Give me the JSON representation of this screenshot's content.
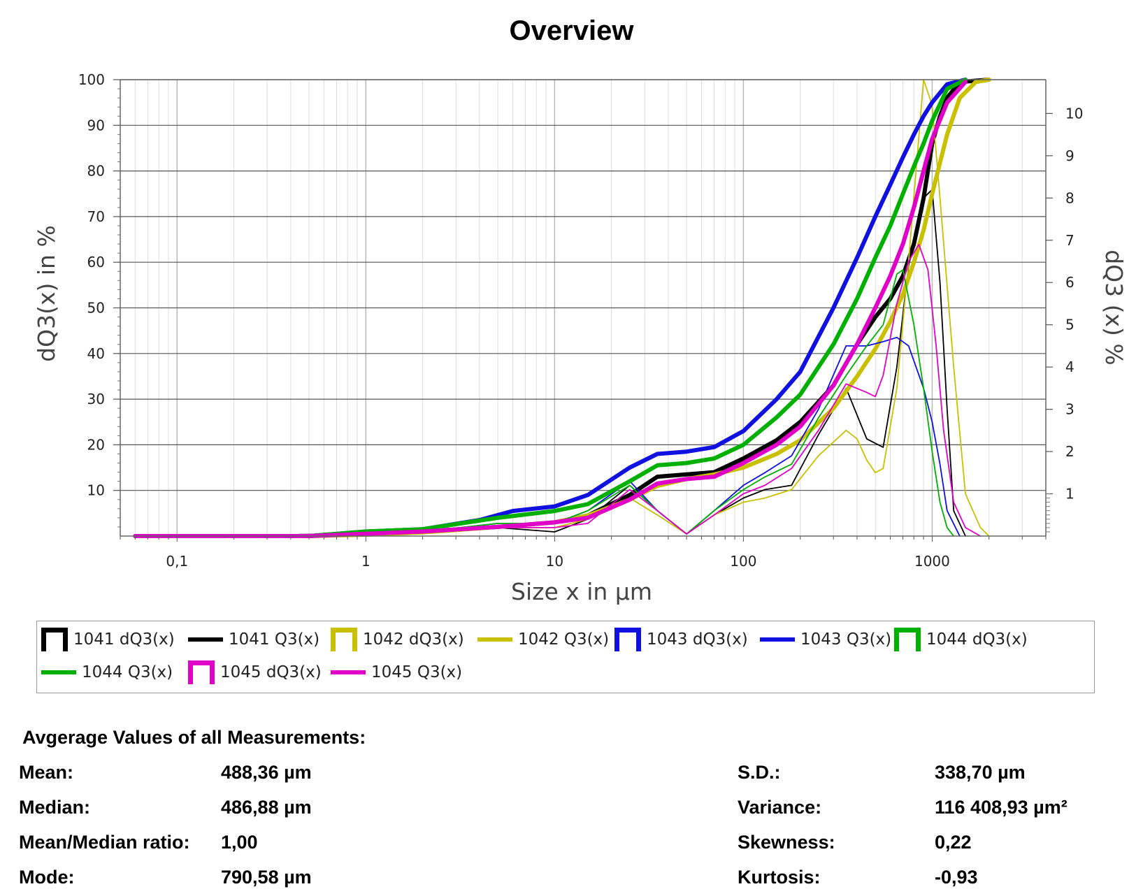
{
  "chart_data": {
    "type": "line",
    "title": "Overview",
    "xlabel": "Size x in µm",
    "ylabel": "dQ3(x) in %",
    "y2label": "dQ3 (x) %",
    "x_scale": "log",
    "xlim": [
      0.05,
      4000
    ],
    "ylim": [
      0,
      100
    ],
    "y2lim": [
      0,
      10.8
    ],
    "x_ticks": [
      {
        "value": 0.1,
        "label": "0,1"
      },
      {
        "value": 1,
        "label": "1"
      },
      {
        "value": 10,
        "label": "10"
      },
      {
        "value": 100,
        "label": "100"
      },
      {
        "value": 1000,
        "label": "1000"
      }
    ],
    "y_ticks": [
      10,
      20,
      30,
      40,
      50,
      60,
      70,
      80,
      90,
      100
    ],
    "y2_ticks": [
      1,
      2,
      3,
      4,
      5,
      6,
      7,
      8,
      9,
      10
    ],
    "grid": true,
    "legend_position": "bottom",
    "series": [
      {
        "name": "1041 dQ3(x)",
        "axis": "right",
        "color": "#000000",
        "style": "thin",
        "x": [
          0.06,
          1,
          2,
          5,
          10,
          15,
          25,
          35,
          50,
          70,
          100,
          130,
          180,
          250,
          350,
          450,
          550,
          650,
          750,
          900,
          1000,
          1100,
          1200,
          1300,
          1500
        ],
        "y": [
          0,
          0.05,
          0.1,
          0.2,
          0.1,
          0.4,
          1.2,
          0.6,
          0.05,
          0.5,
          0.9,
          1.1,
          1.2,
          2.4,
          3.5,
          2.3,
          2.1,
          4.0,
          6.4,
          8.0,
          8.2,
          6.0,
          3.0,
          0.6,
          0
        ]
      },
      {
        "name": "1041 Q3(x)",
        "axis": "left",
        "color": "#000000",
        "style": "thick",
        "x": [
          0.06,
          0.5,
          1,
          2,
          5,
          10,
          15,
          25,
          35,
          50,
          70,
          100,
          150,
          200,
          300,
          400,
          500,
          600,
          700,
          800,
          900,
          1000,
          1100,
          1200,
          1400,
          2000
        ],
        "y": [
          0,
          0,
          0.5,
          1,
          2,
          3,
          4.5,
          9,
          13,
          13.5,
          14,
          17,
          21,
          25,
          33,
          42,
          48,
          52,
          57,
          64,
          74,
          86,
          92,
          96,
          99.5,
          100
        ]
      },
      {
        "name": "1042 dQ3(x)",
        "axis": "right",
        "color": "#c8c000",
        "style": "thin",
        "x": [
          0.06,
          1,
          2,
          5,
          10,
          15,
          25,
          35,
          50,
          70,
          100,
          130,
          180,
          250,
          350,
          400,
          450,
          500,
          550,
          650,
          750,
          900,
          1000,
          1100,
          1300,
          1500,
          1800,
          2000
        ],
        "y": [
          0,
          0.05,
          0.1,
          0.2,
          0.2,
          0.4,
          0.9,
          0.5,
          0.05,
          0.5,
          0.8,
          0.9,
          1.1,
          1.9,
          2.5,
          2.3,
          1.8,
          1.5,
          1.6,
          3.5,
          6.5,
          10.8,
          10.2,
          8.0,
          4.0,
          1.0,
          0.2,
          0
        ]
      },
      {
        "name": "1042 Q3(x)",
        "axis": "left",
        "color": "#c8c000",
        "style": "thick",
        "x": [
          0.06,
          0.5,
          1,
          2,
          5,
          10,
          15,
          25,
          35,
          50,
          70,
          100,
          150,
          200,
          300,
          400,
          500,
          600,
          700,
          800,
          900,
          1000,
          1200,
          1400,
          1700,
          2000
        ],
        "y": [
          0,
          0,
          0.3,
          0.8,
          2,
          3,
          4.5,
          8,
          11,
          12.5,
          13.5,
          15,
          18,
          21,
          28,
          35,
          41,
          47,
          53,
          60,
          67,
          75,
          88,
          96,
          99.5,
          100
        ]
      },
      {
        "name": "1043 dQ3(x)",
        "axis": "right",
        "color": "#1010e0",
        "style": "thin",
        "x": [
          0.06,
          1,
          2,
          5,
          10,
          15,
          25,
          35,
          50,
          70,
          100,
          130,
          180,
          250,
          350,
          450,
          550,
          650,
          750,
          900,
          1000,
          1100,
          1200,
          1400
        ],
        "y": [
          0,
          0.05,
          0.1,
          0.3,
          0.3,
          0.6,
          1.3,
          0.6,
          0.05,
          0.6,
          1.2,
          1.5,
          1.9,
          3.0,
          4.5,
          4.5,
          4.6,
          4.7,
          4.5,
          3.5,
          2.7,
          1.7,
          0.6,
          0
        ]
      },
      {
        "name": "1043 Q3(x)",
        "axis": "left",
        "color": "#1010e0",
        "style": "thick",
        "x": [
          0.06,
          0.5,
          1,
          2,
          4,
          6,
          10,
          15,
          25,
          35,
          50,
          70,
          100,
          150,
          200,
          300,
          400,
          500,
          600,
          700,
          800,
          900,
          1000,
          1200,
          1500
        ],
        "y": [
          0,
          0,
          1,
          1.5,
          3.5,
          5.5,
          6.5,
          9,
          15,
          18,
          18.5,
          19.5,
          23,
          30,
          36,
          50,
          61,
          70,
          77,
          83,
          88,
          92,
          95,
          99,
          100
        ]
      },
      {
        "name": "1044 dQ3(x)",
        "axis": "right",
        "color": "#00b000",
        "style": "thin",
        "x": [
          0.06,
          1,
          2,
          5,
          10,
          15,
          25,
          35,
          50,
          70,
          100,
          130,
          180,
          250,
          350,
          450,
          550,
          650,
          700,
          800,
          900,
          1000,
          1100,
          1200,
          1300
        ],
        "y": [
          0,
          0.05,
          0.1,
          0.3,
          0.3,
          0.6,
          1.2,
          0.6,
          0.05,
          0.6,
          1.1,
          1.4,
          1.7,
          2.8,
          3.8,
          4.5,
          5.0,
          6.2,
          6.3,
          5.0,
          3.5,
          2.0,
          0.8,
          0.2,
          0
        ]
      },
      {
        "name": "1044 Q3(x)",
        "axis": "left",
        "color": "#00b000",
        "style": "thick",
        "x": [
          0.06,
          0.5,
          1,
          2,
          5,
          10,
          15,
          25,
          35,
          50,
          70,
          100,
          150,
          200,
          300,
          400,
          500,
          600,
          700,
          800,
          900,
          1000,
          1200,
          1500
        ],
        "y": [
          0,
          0,
          1,
          1.5,
          4,
          5.5,
          7,
          12,
          15.5,
          16,
          17,
          20,
          26,
          31,
          42,
          52,
          61,
          68,
          75,
          81,
          86,
          91,
          98,
          100
        ]
      },
      {
        "name": "1045 dQ3(x)",
        "axis": "right",
        "color": "#e000c8",
        "style": "thin",
        "x": [
          0.06,
          1,
          2,
          5,
          10,
          15,
          25,
          35,
          50,
          70,
          100,
          130,
          180,
          250,
          350,
          450,
          500,
          550,
          650,
          750,
          850,
          950,
          1050,
          1150,
          1300,
          1500,
          1800
        ],
        "y": [
          0,
          0.05,
          0.1,
          0.2,
          0.2,
          0.3,
          1.1,
          0.6,
          0.05,
          0.5,
          1.0,
          1.2,
          1.6,
          2.5,
          3.6,
          3.4,
          3.3,
          3.8,
          5.5,
          6.5,
          6.9,
          6.3,
          4.5,
          2.5,
          0.8,
          0.2,
          0
        ]
      },
      {
        "name": "1045 Q3(x)",
        "axis": "left",
        "color": "#e000c8",
        "style": "thick",
        "x": [
          0.06,
          0.5,
          1,
          2,
          5,
          10,
          15,
          25,
          35,
          50,
          70,
          100,
          150,
          200,
          300,
          400,
          500,
          600,
          700,
          800,
          900,
          1000,
          1200,
          1500
        ],
        "y": [
          0,
          0,
          0.5,
          1,
          2,
          3,
          4,
          8,
          11.5,
          12.5,
          13,
          16,
          20,
          24,
          33,
          42,
          50,
          57,
          64,
          72,
          80,
          87,
          95,
          99.5
        ]
      }
    ]
  },
  "legend": {
    "items": [
      {
        "label": "1041 dQ3(x)",
        "color": "#000000",
        "symbol": "box"
      },
      {
        "label": "1041 Q3(x)",
        "color": "#000000",
        "symbol": "line"
      },
      {
        "label": "1042 dQ3(x)",
        "color": "#c8c000",
        "symbol": "box"
      },
      {
        "label": "1042 Q3(x)",
        "color": "#c8c000",
        "symbol": "line"
      },
      {
        "label": "1043 dQ3(x)",
        "color": "#1010e0",
        "symbol": "box"
      },
      {
        "label": "1043 Q3(x)",
        "color": "#1010e0",
        "symbol": "line"
      },
      {
        "label": "1044 dQ3(x)",
        "color": "#00b000",
        "symbol": "box"
      },
      {
        "label": "1044 Q3(x)",
        "color": "#00b000",
        "symbol": "line"
      },
      {
        "label": "1045 dQ3(x)",
        "color": "#e000c8",
        "symbol": "box"
      },
      {
        "label": "1045 Q3(x)",
        "color": "#e000c8",
        "symbol": "line"
      }
    ]
  },
  "stats": {
    "heading": "Avgerage Values of all Measurements:",
    "mean_label": "Mean:",
    "mean_value": "488,36 µm",
    "median_label": "Median:",
    "median_value": "486,88 µm",
    "ratio_label": "Mean/Median ratio:",
    "ratio_value": "1,00",
    "mode_label": "Mode:",
    "mode_value": "790,58 µm",
    "sd_label": "S.D.:",
    "sd_value": "338,70 µm",
    "variance_label": "Variance:",
    "variance_value": "116 408,93 µm²",
    "skewness_label": "Skewness:",
    "skewness_value": "0,22",
    "kurtosis_label": "Kurtosis:",
    "kurtosis_value": "-0,93"
  }
}
